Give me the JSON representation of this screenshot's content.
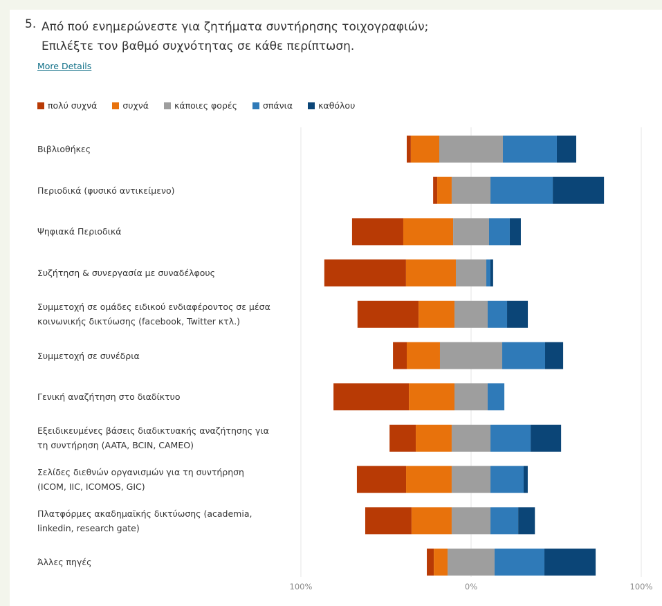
{
  "question": {
    "number": "5.",
    "title_line1": "Από πού ενημερώνεστε για ζητήματα συντήρησης τοιχογραφιών;",
    "title_line2": "Επιλέξτε τον βαθμό συχνότητας σε κάθε περίπτωση.",
    "more_details": "More Details"
  },
  "colors": {
    "poly_sychna": "#b83a05",
    "sychna": "#e8720c",
    "kapoies_fores": "#9e9e9e",
    "spania": "#2f7ab8",
    "katholou": "#0b4577"
  },
  "chart_data": {
    "type": "bar",
    "orientation": "horizontal",
    "stacking": "diverging",
    "legend_placement": "top-left",
    "grid": true,
    "xlim": [
      -100,
      100
    ],
    "x_ticks": [
      "100%",
      "0%",
      "100%"
    ],
    "categories": [
      "Βιβλιοθήκες",
      "Περιοδικά (φυσικό αντικείμενο)",
      "Ψηφιακά Περιοδικά",
      "Συζήτηση & συνεργασία με συναδέλφους",
      "Συμμετοχή σε ομάδες ειδικού ενδιαφέροντος σε μέσα κοινωνικής δικτύωσης (facebook, Twitter κτλ.)",
      "Συμμετοχή σε συνέδρια",
      "Γενική αναζήτηση στο διαδίκτυο",
      "Εξειδικευμένες βάσεις διαδικτυακής αναζήτησης για τη συντήρηση (AATA, BCIN, CAMEO)",
      "Σελίδες διεθνών οργανισμών για τη συντήρηση (ICOM, IIC, ICOMOS, GIC)",
      "Πλατφόρμες ακαδημαϊκής δικτύωσης (academia, linkedin, research gate)",
      "Άλλες πηγές"
    ],
    "label_lines": [
      [
        "Βιβλιοθήκες"
      ],
      [
        "Περιοδικά (φυσικό αντικείμενο)"
      ],
      [
        "Ψηφιακά Περιοδικά"
      ],
      [
        "Συζήτηση & συνεργασία με συναδέλφους"
      ],
      [
        "Συμμετοχή σε ομάδες ειδικού ενδιαφέροντος σε μέσα",
        "κοινωνικής δικτύωσης (facebook, Twitter κτλ.)"
      ],
      [
        "Συμμετοχή σε συνέδρια"
      ],
      [
        "Γενική αναζήτηση στο διαδίκτυο"
      ],
      [
        "Εξειδικευμένες βάσεις διαδικτυακής αναζήτησης για",
        "τη συντήρηση (AATA, BCIN, CAMEO)"
      ],
      [
        "Σελίδες διεθνών οργανισμών για τη συντήρηση",
        "(ICOM, IIC, ICOMOS, GIC)"
      ],
      [
        "Πλατφόρμες ακαδημαϊκής δικτύωσης (academia,",
        "linkedin, research gate)"
      ],
      [
        "Άλλες πηγές"
      ]
    ],
    "series": [
      {
        "name": "πολύ συχνά",
        "color_key": "poly_sychna",
        "values": [
          2.4,
          2.4,
          30.1,
          48.0,
          35.9,
          8.1,
          44.3,
          15.4,
          28.9,
          27.2,
          4.1
        ]
      },
      {
        "name": "συχνά",
        "color_key": "sychna",
        "values": [
          16.7,
          8.5,
          29.3,
          29.3,
          21.1,
          19.5,
          26.8,
          21.1,
          26.8,
          23.6,
          8.1
        ]
      },
      {
        "name": "κάποιες φορές",
        "color_key": "kapoies_fores",
        "values": [
          37.4,
          22.8,
          21.1,
          17.9,
          19.5,
          36.6,
          19.5,
          22.8,
          22.8,
          22.8,
          27.6
        ]
      },
      {
        "name": "σπάνια",
        "color_key": "spania",
        "values": [
          31.7,
          36.6,
          12.2,
          2.4,
          11.4,
          25.2,
          9.8,
          23.6,
          19.5,
          16.3,
          29.3
        ]
      },
      {
        "name": "καθόλου",
        "color_key": "katholou",
        "values": [
          11.4,
          30.1,
          6.5,
          1.6,
          12.2,
          10.6,
          0,
          17.9,
          2.4,
          9.8,
          30.1
        ]
      }
    ]
  }
}
